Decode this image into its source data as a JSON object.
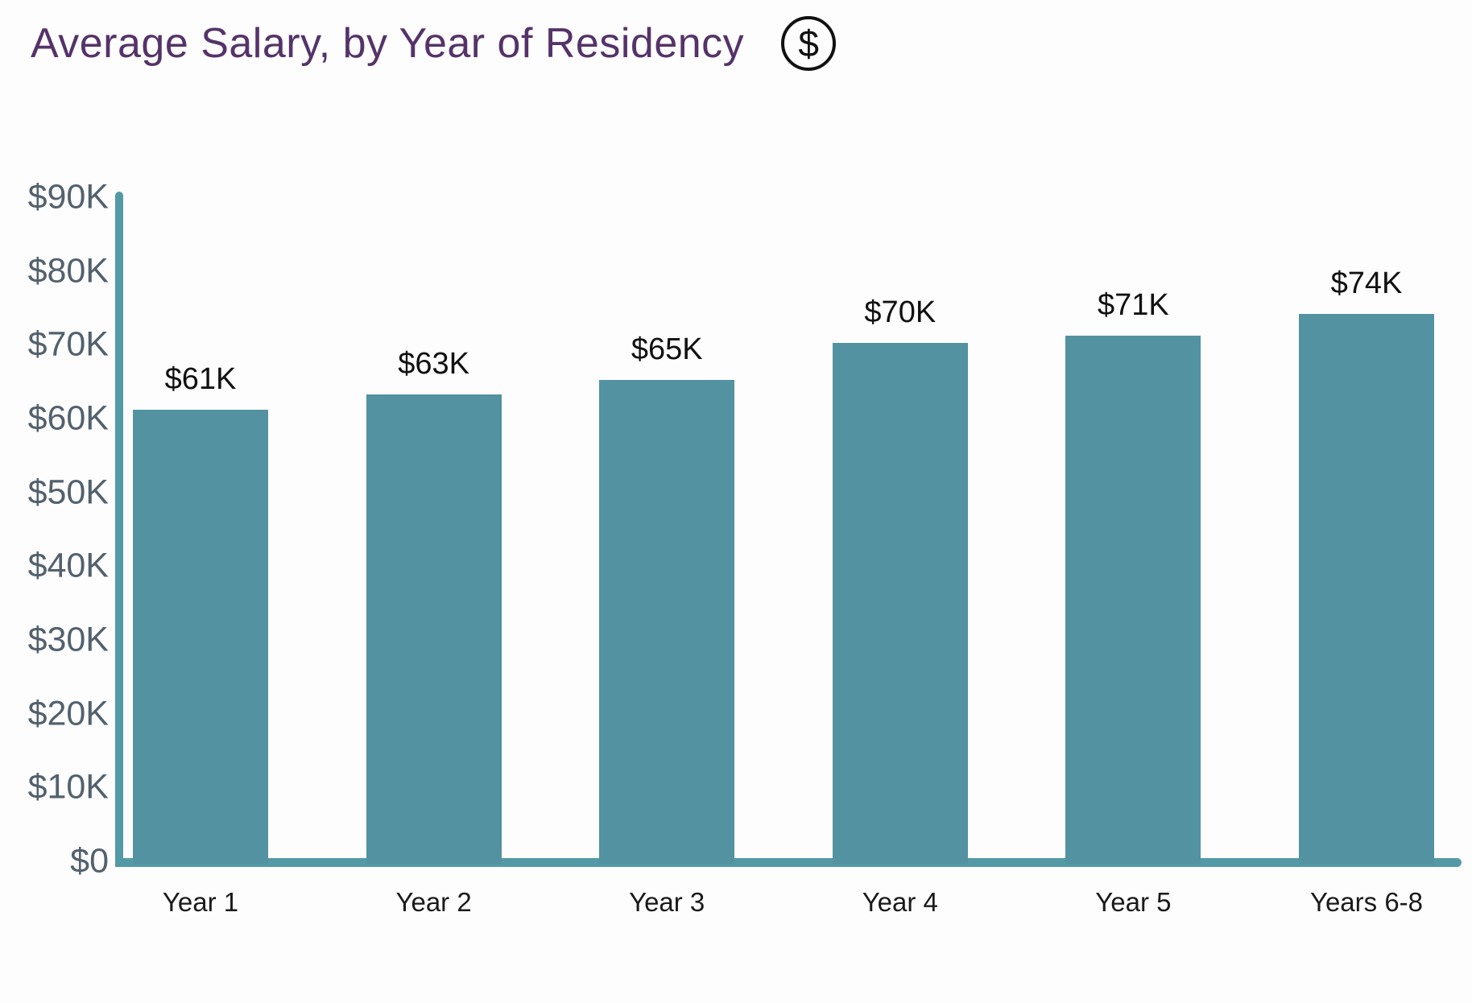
{
  "header": {
    "title": "Average Salary, by Year of Residency",
    "icon": "dollar-sign-icon",
    "icon_glyph": "$"
  },
  "chart_data": {
    "type": "bar",
    "title": "Average Salary, by Year of Residency",
    "xlabel": "",
    "ylabel": "",
    "categories": [
      "Year 1",
      "Year 2",
      "Year 3",
      "Year 4",
      "Year 5",
      "Years 6-8"
    ],
    "values": [
      61,
      63,
      65,
      70,
      71,
      74
    ],
    "value_labels": [
      "$61K",
      "$63K",
      "$65K",
      "$70K",
      "$71K",
      "$74K"
    ],
    "unit": "USD thousands",
    "ylim": [
      0,
      90
    ],
    "y_ticks": {
      "values": [
        0,
        10,
        20,
        30,
        40,
        50,
        60,
        70,
        80,
        90
      ],
      "labels": [
        "$0",
        "$10K",
        "$20K",
        "$30K",
        "$40K",
        "$50K",
        "$60K",
        "$70K",
        "$80K",
        "$90K"
      ]
    },
    "grid": false,
    "legend": null,
    "colors": {
      "bar": "#5292a1",
      "axis": "#549aa6",
      "y_tick_label": "#53616e",
      "x_tick_label": "#1a1a1a",
      "value_label": "#111111",
      "title": "#553369",
      "background": "#fdfdfd"
    }
  }
}
